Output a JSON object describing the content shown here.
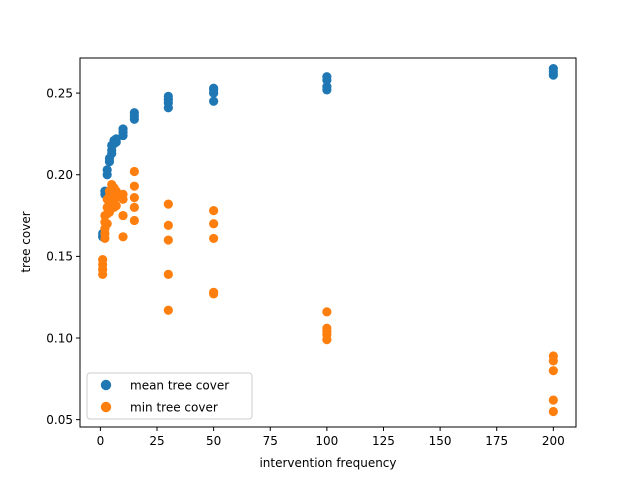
{
  "chart_data": {
    "type": "scatter",
    "title": "",
    "xlabel": "intervention frequency",
    "ylabel": "tree cover",
    "xlim": [
      -9,
      210
    ],
    "ylim": [
      0.0455,
      0.2715
    ],
    "xticks": [
      0,
      25,
      50,
      75,
      100,
      125,
      150,
      175,
      200
    ],
    "yticks": [
      0.05,
      0.1,
      0.15,
      0.2,
      0.25
    ],
    "ytick_labels": [
      "0.05",
      "0.10",
      "0.15",
      "0.20",
      "0.25"
    ],
    "grid": false,
    "legend_position": "lower-left",
    "series": [
      {
        "name": "mean tree cover",
        "color": "#1f77b4",
        "points": [
          [
            1,
            0.162
          ],
          [
            1,
            0.164
          ],
          [
            2,
            0.188
          ],
          [
            2,
            0.19
          ],
          [
            3,
            0.2
          ],
          [
            3,
            0.203
          ],
          [
            4,
            0.208
          ],
          [
            4,
            0.21
          ],
          [
            5,
            0.213
          ],
          [
            5,
            0.215
          ],
          [
            5,
            0.218
          ],
          [
            6,
            0.219
          ],
          [
            6,
            0.221
          ],
          [
            7,
            0.22
          ],
          [
            7,
            0.222
          ],
          [
            10,
            0.224
          ],
          [
            10,
            0.226
          ],
          [
            10,
            0.228
          ],
          [
            15,
            0.234
          ],
          [
            15,
            0.236
          ],
          [
            15,
            0.238
          ],
          [
            30,
            0.241
          ],
          [
            30,
            0.244
          ],
          [
            30,
            0.246
          ],
          [
            30,
            0.248
          ],
          [
            50,
            0.245
          ],
          [
            50,
            0.25
          ],
          [
            50,
            0.252
          ],
          [
            50,
            0.253
          ],
          [
            100,
            0.252
          ],
          [
            100,
            0.254
          ],
          [
            100,
            0.258
          ],
          [
            100,
            0.26
          ],
          [
            200,
            0.261
          ],
          [
            200,
            0.263
          ],
          [
            200,
            0.265
          ]
        ]
      },
      {
        "name": "min tree cover",
        "color": "#ff7f0e",
        "points": [
          [
            1,
            0.139
          ],
          [
            1,
            0.142
          ],
          [
            1,
            0.145
          ],
          [
            1,
            0.148
          ],
          [
            2,
            0.161
          ],
          [
            2,
            0.164
          ],
          [
            2,
            0.167
          ],
          [
            2,
            0.171
          ],
          [
            2,
            0.175
          ],
          [
            3,
            0.17
          ],
          [
            3,
            0.176
          ],
          [
            3,
            0.18
          ],
          [
            3,
            0.185
          ],
          [
            4,
            0.177
          ],
          [
            4,
            0.182
          ],
          [
            4,
            0.187
          ],
          [
            4,
            0.19
          ],
          [
            5,
            0.181
          ],
          [
            5,
            0.186
          ],
          [
            5,
            0.191
          ],
          [
            5,
            0.194
          ],
          [
            6,
            0.18
          ],
          [
            6,
            0.185
          ],
          [
            6,
            0.189
          ],
          [
            6,
            0.192
          ],
          [
            7,
            0.181
          ],
          [
            7,
            0.186
          ],
          [
            7,
            0.19
          ],
          [
            10,
            0.162
          ],
          [
            10,
            0.175
          ],
          [
            10,
            0.185
          ],
          [
            10,
            0.188
          ],
          [
            15,
            0.172
          ],
          [
            15,
            0.18
          ],
          [
            15,
            0.186
          ],
          [
            15,
            0.193
          ],
          [
            15,
            0.202
          ],
          [
            30,
            0.117
          ],
          [
            30,
            0.139
          ],
          [
            30,
            0.16
          ],
          [
            30,
            0.169
          ],
          [
            30,
            0.182
          ],
          [
            50,
            0.127
          ],
          [
            50,
            0.128
          ],
          [
            50,
            0.161
          ],
          [
            50,
            0.17
          ],
          [
            50,
            0.178
          ],
          [
            100,
            0.099
          ],
          [
            100,
            0.102
          ],
          [
            100,
            0.104
          ],
          [
            100,
            0.106
          ],
          [
            100,
            0.116
          ],
          [
            200,
            0.055
          ],
          [
            200,
            0.062
          ],
          [
            200,
            0.08
          ],
          [
            200,
            0.086
          ],
          [
            200,
            0.089
          ]
        ]
      }
    ]
  }
}
